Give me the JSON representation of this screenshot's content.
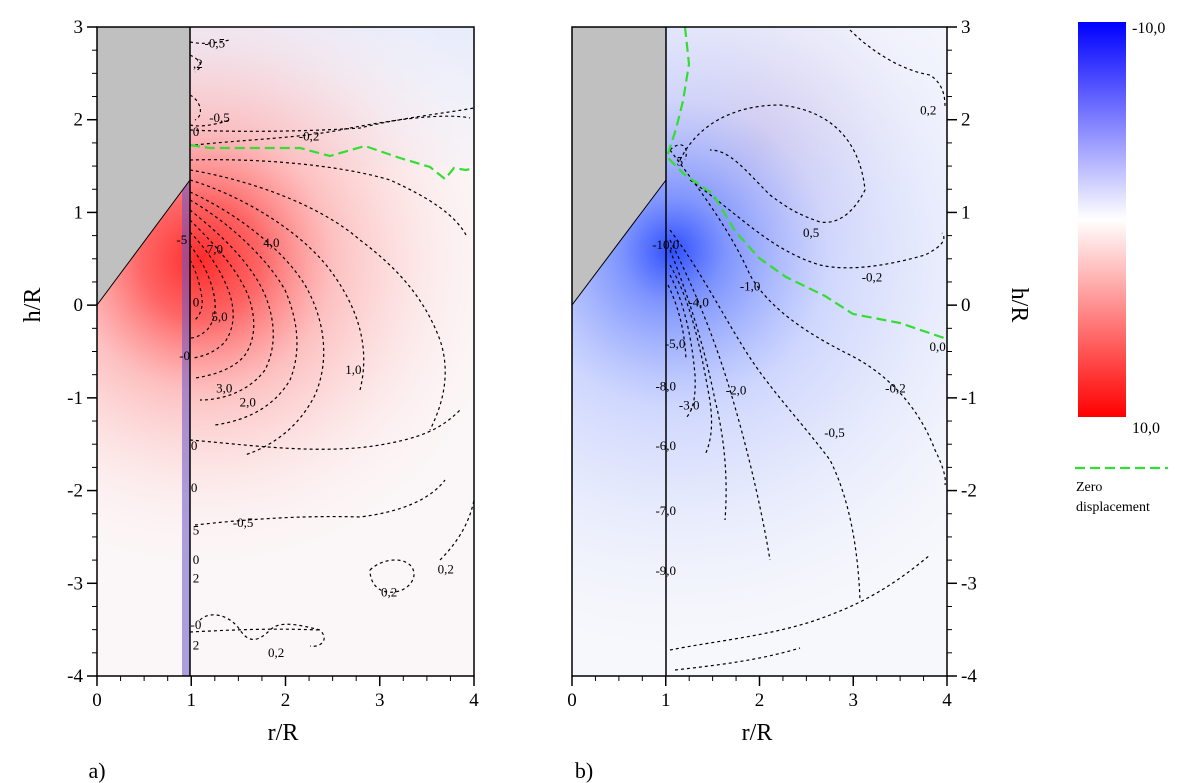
{
  "chart_data": [
    {
      "type": "heatmap",
      "panel_label": "a)",
      "xlabel": "r/R",
      "ylabel": "h/R",
      "xlim": [
        0,
        4
      ],
      "ylim": [
        -4,
        3
      ],
      "x_ticks": [
        "0",
        "1",
        "2",
        "3",
        "4"
      ],
      "y_ticks": [
        "-4",
        "-3",
        "-2",
        "-1",
        "0",
        "1",
        "2",
        "3"
      ],
      "field": {
        "peak_value": 10.0,
        "peak_at": [
          1.15,
          0.5
        ],
        "negative_band_at_r": 1.0
      },
      "contour_labels": [
        {
          "text": "-0,5",
          "x": 1.25,
          "y": 2.82
        },
        {
          "text": "-0,5",
          "x": 1.3,
          "y": 2.02
        },
        {
          "text": "-0,2",
          "x": 2.25,
          "y": 1.82
        },
        {
          "text": ",2",
          "x": 1.07,
          "y": 2.6
        },
        {
          "text": "0",
          "x": 1.05,
          "y": 1.87
        },
        {
          "text": "-5",
          "x": 0.9,
          "y": 0.7
        },
        {
          "text": "7,0",
          "x": 1.25,
          "y": 0.6
        },
        {
          "text": "4,0",
          "x": 1.85,
          "y": 0.67
        },
        {
          "text": "0",
          "x": 1.05,
          "y": 0.03
        },
        {
          "text": "5,0",
          "x": 1.3,
          "y": -0.13
        },
        {
          "text": "-0",
          "x": 0.93,
          "y": -0.55
        },
        {
          "text": "1,0",
          "x": 2.72,
          "y": -0.7
        },
        {
          "text": "3,0",
          "x": 1.35,
          "y": -0.9
        },
        {
          "text": "2,0",
          "x": 1.6,
          "y": -1.05
        },
        {
          "text": "0",
          "x": 1.03,
          "y": -1.52
        },
        {
          "text": "0",
          "x": 1.03,
          "y": -1.97
        },
        {
          "text": "-0,5",
          "x": 1.55,
          "y": -2.35
        },
        {
          "text": "5",
          "x": 1.05,
          "y": -2.43
        },
        {
          "text": "0",
          "x": 1.05,
          "y": -2.75
        },
        {
          "text": "2",
          "x": 1.05,
          "y": -2.95
        },
        {
          "text": "0,2",
          "x": 3.1,
          "y": -3.1
        },
        {
          "text": "0,2",
          "x": 3.7,
          "y": -2.85
        },
        {
          "text": "-0",
          "x": 1.05,
          "y": -3.45
        },
        {
          "text": "2",
          "x": 1.05,
          "y": -3.67
        },
        {
          "text": "0,2",
          "x": 1.9,
          "y": -3.75
        }
      ],
      "zero_displacement": [
        [
          1.0,
          1.85
        ],
        [
          1.2,
          1.78
        ],
        [
          1.5,
          1.75
        ],
        [
          1.8,
          1.68
        ],
        [
          2.2,
          1.72
        ],
        [
          2.6,
          1.62
        ],
        [
          3.0,
          1.72
        ],
        [
          3.4,
          1.55
        ],
        [
          3.65,
          1.3
        ],
        [
          3.8,
          1.53
        ],
        [
          4.0,
          1.42
        ]
      ]
    },
    {
      "type": "heatmap",
      "panel_label": "b)",
      "xlabel": "r/R",
      "ylabel": "h/R",
      "xlim": [
        0,
        4
      ],
      "ylim": [
        -4,
        3
      ],
      "x_ticks": [
        "0",
        "1",
        "2",
        "3",
        "4"
      ],
      "y_ticks": [
        "-4",
        "-3",
        "-2",
        "-1",
        "0",
        "1",
        "2",
        "3"
      ],
      "field": {
        "peak_value": -10.0,
        "peak_at": [
          1.05,
          0.55
        ],
        "positive_lobe_at": [
          1.9,
          1.8
        ]
      },
      "contour_labels": [
        {
          "text": "-10,0",
          "x": 1.0,
          "y": 0.65
        },
        {
          "text": "0,5",
          "x": 2.55,
          "y": 0.78
        },
        {
          "text": "-0,2",
          "x": 3.2,
          "y": 0.3
        },
        {
          "text": "0,2",
          "x": 3.8,
          "y": 2.1
        },
        {
          "text": "-1,0",
          "x": 1.9,
          "y": 0.2
        },
        {
          "text": "-4,0",
          "x": 1.35,
          "y": 0.03
        },
        {
          "text": "-5,0",
          "x": 1.1,
          "y": -0.42
        },
        {
          "text": "0,0",
          "x": 3.9,
          "y": -0.45
        },
        {
          "text": "-8,0",
          "x": 1.0,
          "y": -0.88
        },
        {
          "text": "-3,0",
          "x": 1.25,
          "y": -1.08
        },
        {
          "text": "-2,0",
          "x": 1.75,
          "y": -0.92
        },
        {
          "text": "-0,2",
          "x": 3.45,
          "y": -0.9
        },
        {
          "text": "-0,5",
          "x": 2.8,
          "y": -1.38
        },
        {
          "text": "-6,0",
          "x": 1.0,
          "y": -1.52
        },
        {
          "text": "-7,0",
          "x": 1.0,
          "y": -2.22
        },
        {
          "text": "-9,0",
          "x": 1.0,
          "y": -2.87
        },
        {
          "text": "5",
          "x": 1.15,
          "y": 1.55
        }
      ],
      "zero_displacement": [
        [
          1.18,
          3.0
        ],
        [
          1.22,
          2.6
        ],
        [
          1.15,
          2.2
        ],
        [
          1.05,
          1.9
        ],
        [
          1.0,
          1.6
        ],
        [
          1.2,
          1.4
        ],
        [
          1.5,
          1.2
        ],
        [
          1.75,
          0.8
        ],
        [
          2.0,
          0.5
        ],
        [
          2.3,
          0.3
        ],
        [
          2.7,
          0.1
        ],
        [
          3.0,
          -0.1
        ],
        [
          3.5,
          -0.2
        ],
        [
          4.0,
          -0.35
        ]
      ]
    }
  ],
  "colorbar": {
    "max_label": "-10,0",
    "min_label": "10,0",
    "colors": {
      "top": "#0000ff",
      "middle": "#ffffff",
      "bottom": "#ff0000"
    }
  },
  "legend": {
    "line1": "Zero",
    "line2": "displacement",
    "line_color": "#33dd33"
  },
  "colors": {
    "body_fill": "#c0c0c0",
    "contour_line": "#000000",
    "zero_line": "#33dd33"
  }
}
